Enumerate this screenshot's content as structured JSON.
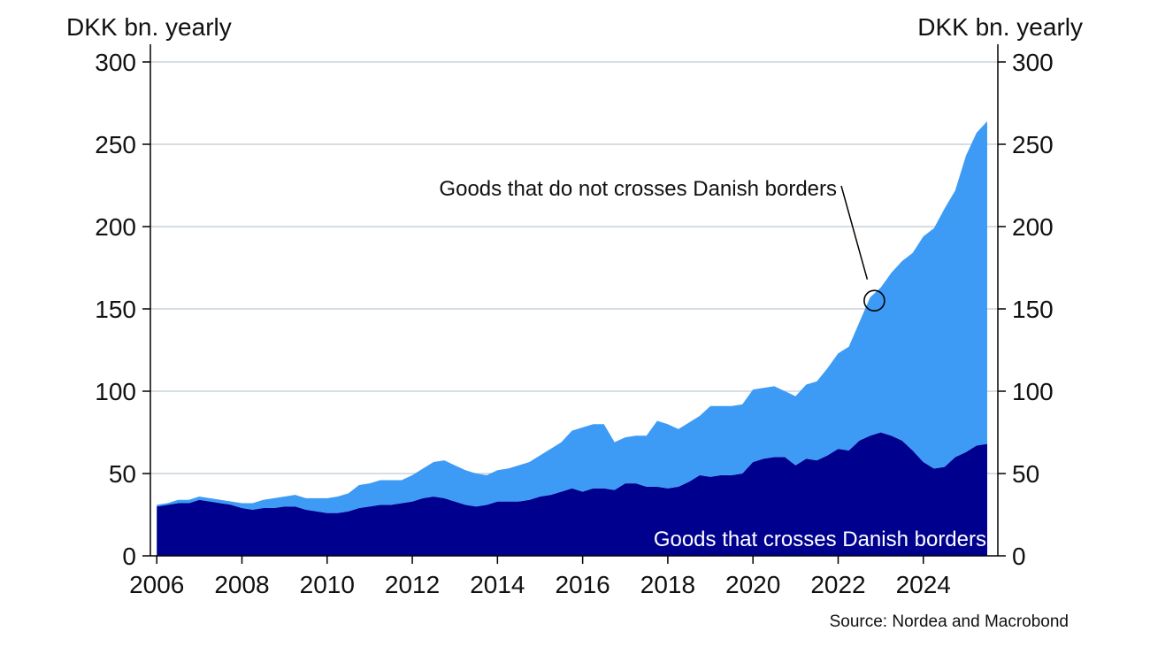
{
  "chart_data": {
    "type": "area",
    "stacked": true,
    "ylabel_left": "DKK bn. yearly",
    "ylabel_right": "DKK bn. yearly",
    "ylim": [
      0,
      300
    ],
    "y_ticks": [
      0,
      50,
      100,
      150,
      200,
      250,
      300
    ],
    "x_ticks": [
      2006,
      2008,
      2010,
      2012,
      2014,
      2016,
      2018,
      2020,
      2022,
      2024
    ],
    "xlim": [
      2005.85,
      2025.75
    ],
    "grid": true,
    "source": "Source: Nordea and Macrobond",
    "x": [
      2006.0,
      2006.25,
      2006.5,
      2006.75,
      2007.0,
      2007.25,
      2007.5,
      2007.75,
      2008.0,
      2008.25,
      2008.5,
      2008.75,
      2009.0,
      2009.25,
      2009.5,
      2009.75,
      2010.0,
      2010.25,
      2010.5,
      2010.75,
      2011.0,
      2011.25,
      2011.5,
      2011.75,
      2012.0,
      2012.25,
      2012.5,
      2012.75,
      2013.0,
      2013.25,
      2013.5,
      2013.75,
      2014.0,
      2014.25,
      2014.5,
      2014.75,
      2015.0,
      2015.25,
      2015.5,
      2015.75,
      2016.0,
      2016.25,
      2016.5,
      2016.75,
      2017.0,
      2017.25,
      2017.5,
      2017.75,
      2018.0,
      2018.25,
      2018.5,
      2018.75,
      2019.0,
      2019.25,
      2019.5,
      2019.75,
      2020.0,
      2020.25,
      2020.5,
      2020.75,
      2021.0,
      2021.25,
      2021.5,
      2021.75,
      2022.0,
      2022.25,
      2022.5,
      2022.75,
      2023.0,
      2023.25,
      2023.5,
      2023.75,
      2024.0,
      2024.25,
      2024.5,
      2024.75,
      2025.0,
      2025.25,
      2025.5
    ],
    "series": [
      {
        "name": "Goods that crosses Danish borders",
        "color": "#00008f",
        "values": [
          30,
          31,
          32,
          32,
          34,
          33,
          32,
          31,
          29,
          28,
          29,
          29,
          30,
          30,
          28,
          27,
          26,
          26,
          27,
          29,
          30,
          31,
          31,
          32,
          33,
          35,
          36,
          35,
          33,
          31,
          30,
          31,
          33,
          33,
          33,
          34,
          36,
          37,
          39,
          41,
          39,
          41,
          41,
          40,
          44,
          44,
          42,
          42,
          41,
          42,
          45,
          49,
          48,
          49,
          49,
          50,
          57,
          59,
          60,
          60,
          55,
          59,
          58,
          61,
          65,
          64,
          70,
          73,
          75,
          73,
          70,
          64,
          57,
          53,
          54,
          60,
          63,
          67,
          68
        ]
      },
      {
        "name": "Goods that do not crosses Danish borders",
        "color": "#3d9bf5",
        "values": [
          1,
          1,
          2,
          2,
          2,
          2,
          2,
          2,
          3,
          4,
          5,
          6,
          6,
          7,
          7,
          8,
          9,
          10,
          11,
          14,
          14,
          15,
          15,
          14,
          16,
          18,
          21,
          23,
          22,
          21,
          20,
          18,
          19,
          20,
          22,
          23,
          25,
          28,
          30,
          35,
          39,
          39,
          39,
          29,
          28,
          29,
          31,
          40,
          39,
          35,
          36,
          36,
          43,
          42,
          42,
          42,
          44,
          43,
          43,
          40,
          42,
          45,
          48,
          53,
          58,
          63,
          72,
          84,
          88,
          99,
          109,
          120,
          137,
          146,
          157,
          162,
          180,
          190,
          196
        ]
      }
    ],
    "annotations": [
      {
        "text": "Goods that do not crosses Danish borders",
        "x": 2022.85,
        "y": 155
      },
      {
        "text": "Goods that crosses Danish borders"
      }
    ]
  },
  "colors": {
    "grid": "#c8d4dc",
    "axis": "#000000",
    "text": "#111111"
  }
}
